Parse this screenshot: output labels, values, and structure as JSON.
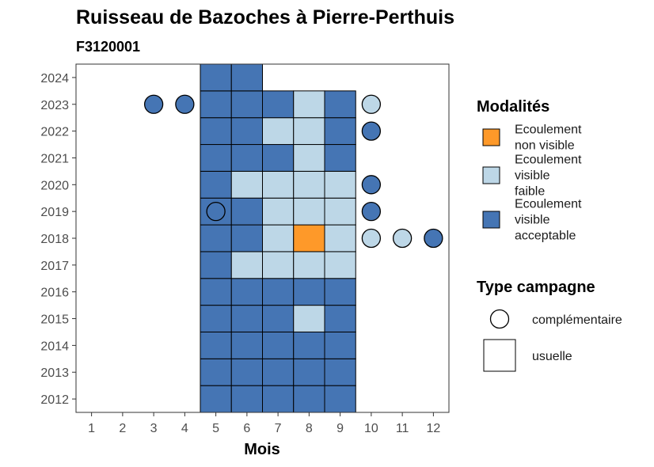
{
  "chart_data": {
    "type": "heatmap",
    "title": "Ruisseau de Bazoches à Pierre-Perthuis",
    "subtitle": "F3120001",
    "xlabel": "Mois",
    "ylabel": "",
    "x_ticks": [
      1,
      2,
      3,
      4,
      5,
      6,
      7,
      8,
      9,
      10,
      11,
      12
    ],
    "y_ticks": [
      2012,
      2013,
      2014,
      2015,
      2016,
      2017,
      2018,
      2019,
      2020,
      2021,
      2022,
      2023,
      2024
    ],
    "xlim": [
      0.5,
      12.5
    ],
    "ylim": [
      2011.5,
      2024.5
    ],
    "colors": {
      "nv": "#fe9929",
      "vf": "#bdd7e7",
      "va": "#4575b4"
    },
    "modalites": [
      {
        "key": "nv",
        "label": "Ecoulement non visible",
        "lines": [
          "Ecoulement",
          "non visible"
        ]
      },
      {
        "key": "vf",
        "label": "Ecoulement visible faible",
        "lines": [
          "Ecoulement",
          "visible",
          "faible"
        ]
      },
      {
        "key": "va",
        "label": "Ecoulement visible acceptable",
        "lines": [
          "Ecoulement",
          "visible",
          "acceptable"
        ]
      }
    ],
    "legend_modalites_title": "Modalités",
    "legend_type_title": "Type campagne",
    "types": [
      {
        "key": "complementaire",
        "label": "complémentaire",
        "shape": "circle"
      },
      {
        "key": "usuelle",
        "label": "usuelle",
        "shape": "square"
      }
    ],
    "observations": [
      {
        "year": 2012,
        "month": 5,
        "modalite": "va",
        "type": "usuelle"
      },
      {
        "year": 2012,
        "month": 6,
        "modalite": "va",
        "type": "usuelle"
      },
      {
        "year": 2012,
        "month": 7,
        "modalite": "va",
        "type": "usuelle"
      },
      {
        "year": 2012,
        "month": 8,
        "modalite": "va",
        "type": "usuelle"
      },
      {
        "year": 2012,
        "month": 9,
        "modalite": "va",
        "type": "usuelle"
      },
      {
        "year": 2013,
        "month": 5,
        "modalite": "va",
        "type": "usuelle"
      },
      {
        "year": 2013,
        "month": 6,
        "modalite": "va",
        "type": "usuelle"
      },
      {
        "year": 2013,
        "month": 7,
        "modalite": "va",
        "type": "usuelle"
      },
      {
        "year": 2013,
        "month": 8,
        "modalite": "va",
        "type": "usuelle"
      },
      {
        "year": 2013,
        "month": 9,
        "modalite": "va",
        "type": "usuelle"
      },
      {
        "year": 2014,
        "month": 5,
        "modalite": "va",
        "type": "usuelle"
      },
      {
        "year": 2014,
        "month": 6,
        "modalite": "va",
        "type": "usuelle"
      },
      {
        "year": 2014,
        "month": 7,
        "modalite": "va",
        "type": "usuelle"
      },
      {
        "year": 2014,
        "month": 8,
        "modalite": "va",
        "type": "usuelle"
      },
      {
        "year": 2014,
        "month": 9,
        "modalite": "va",
        "type": "usuelle"
      },
      {
        "year": 2015,
        "month": 5,
        "modalite": "va",
        "type": "usuelle"
      },
      {
        "year": 2015,
        "month": 6,
        "modalite": "va",
        "type": "usuelle"
      },
      {
        "year": 2015,
        "month": 7,
        "modalite": "va",
        "type": "usuelle"
      },
      {
        "year": 2015,
        "month": 8,
        "modalite": "vf",
        "type": "usuelle"
      },
      {
        "year": 2015,
        "month": 9,
        "modalite": "va",
        "type": "usuelle"
      },
      {
        "year": 2016,
        "month": 5,
        "modalite": "va",
        "type": "usuelle"
      },
      {
        "year": 2016,
        "month": 6,
        "modalite": "va",
        "type": "usuelle"
      },
      {
        "year": 2016,
        "month": 7,
        "modalite": "va",
        "type": "usuelle"
      },
      {
        "year": 2016,
        "month": 8,
        "modalite": "va",
        "type": "usuelle"
      },
      {
        "year": 2016,
        "month": 9,
        "modalite": "va",
        "type": "usuelle"
      },
      {
        "year": 2017,
        "month": 5,
        "modalite": "va",
        "type": "usuelle"
      },
      {
        "year": 2017,
        "month": 6,
        "modalite": "vf",
        "type": "usuelle"
      },
      {
        "year": 2017,
        "month": 7,
        "modalite": "vf",
        "type": "usuelle"
      },
      {
        "year": 2017,
        "month": 8,
        "modalite": "vf",
        "type": "usuelle"
      },
      {
        "year": 2017,
        "month": 9,
        "modalite": "vf",
        "type": "usuelle"
      },
      {
        "year": 2018,
        "month": 5,
        "modalite": "va",
        "type": "usuelle"
      },
      {
        "year": 2018,
        "month": 6,
        "modalite": "va",
        "type": "usuelle"
      },
      {
        "year": 2018,
        "month": 7,
        "modalite": "vf",
        "type": "usuelle"
      },
      {
        "year": 2018,
        "month": 8,
        "modalite": "nv",
        "type": "usuelle"
      },
      {
        "year": 2018,
        "month": 9,
        "modalite": "vf",
        "type": "usuelle"
      },
      {
        "year": 2018,
        "month": 10,
        "modalite": "vf",
        "type": "complementaire"
      },
      {
        "year": 2018,
        "month": 11,
        "modalite": "vf",
        "type": "complementaire"
      },
      {
        "year": 2018,
        "month": 12,
        "modalite": "va",
        "type": "complementaire"
      },
      {
        "year": 2019,
        "month": 5,
        "modalite": "va",
        "type": "usuelle"
      },
      {
        "year": 2019,
        "month": 5,
        "modalite": "va",
        "type": "complementaire"
      },
      {
        "year": 2019,
        "month": 6,
        "modalite": "va",
        "type": "usuelle"
      },
      {
        "year": 2019,
        "month": 7,
        "modalite": "vf",
        "type": "usuelle"
      },
      {
        "year": 2019,
        "month": 8,
        "modalite": "vf",
        "type": "usuelle"
      },
      {
        "year": 2019,
        "month": 9,
        "modalite": "vf",
        "type": "usuelle"
      },
      {
        "year": 2019,
        "month": 10,
        "modalite": "va",
        "type": "complementaire"
      },
      {
        "year": 2020,
        "month": 5,
        "modalite": "va",
        "type": "usuelle"
      },
      {
        "year": 2020,
        "month": 6,
        "modalite": "vf",
        "type": "usuelle"
      },
      {
        "year": 2020,
        "month": 7,
        "modalite": "vf",
        "type": "usuelle"
      },
      {
        "year": 2020,
        "month": 8,
        "modalite": "vf",
        "type": "usuelle"
      },
      {
        "year": 2020,
        "month": 9,
        "modalite": "vf",
        "type": "usuelle"
      },
      {
        "year": 2020,
        "month": 10,
        "modalite": "va",
        "type": "complementaire"
      },
      {
        "year": 2021,
        "month": 5,
        "modalite": "va",
        "type": "usuelle"
      },
      {
        "year": 2021,
        "month": 6,
        "modalite": "va",
        "type": "usuelle"
      },
      {
        "year": 2021,
        "month": 7,
        "modalite": "va",
        "type": "usuelle"
      },
      {
        "year": 2021,
        "month": 8,
        "modalite": "vf",
        "type": "usuelle"
      },
      {
        "year": 2021,
        "month": 9,
        "modalite": "va",
        "type": "usuelle"
      },
      {
        "year": 2022,
        "month": 5,
        "modalite": "va",
        "type": "usuelle"
      },
      {
        "year": 2022,
        "month": 6,
        "modalite": "va",
        "type": "usuelle"
      },
      {
        "year": 2022,
        "month": 7,
        "modalite": "vf",
        "type": "usuelle"
      },
      {
        "year": 2022,
        "month": 8,
        "modalite": "vf",
        "type": "usuelle"
      },
      {
        "year": 2022,
        "month": 9,
        "modalite": "va",
        "type": "usuelle"
      },
      {
        "year": 2022,
        "month": 10,
        "modalite": "va",
        "type": "complementaire"
      },
      {
        "year": 2023,
        "month": 3,
        "modalite": "va",
        "type": "complementaire"
      },
      {
        "year": 2023,
        "month": 4,
        "modalite": "va",
        "type": "complementaire"
      },
      {
        "year": 2023,
        "month": 5,
        "modalite": "va",
        "type": "usuelle"
      },
      {
        "year": 2023,
        "month": 6,
        "modalite": "va",
        "type": "usuelle"
      },
      {
        "year": 2023,
        "month": 7,
        "modalite": "va",
        "type": "usuelle"
      },
      {
        "year": 2023,
        "month": 8,
        "modalite": "vf",
        "type": "usuelle"
      },
      {
        "year": 2023,
        "month": 9,
        "modalite": "va",
        "type": "usuelle"
      },
      {
        "year": 2023,
        "month": 10,
        "modalite": "vf",
        "type": "complementaire"
      },
      {
        "year": 2024,
        "month": 5,
        "modalite": "va",
        "type": "usuelle"
      },
      {
        "year": 2024,
        "month": 6,
        "modalite": "va",
        "type": "usuelle"
      }
    ]
  }
}
